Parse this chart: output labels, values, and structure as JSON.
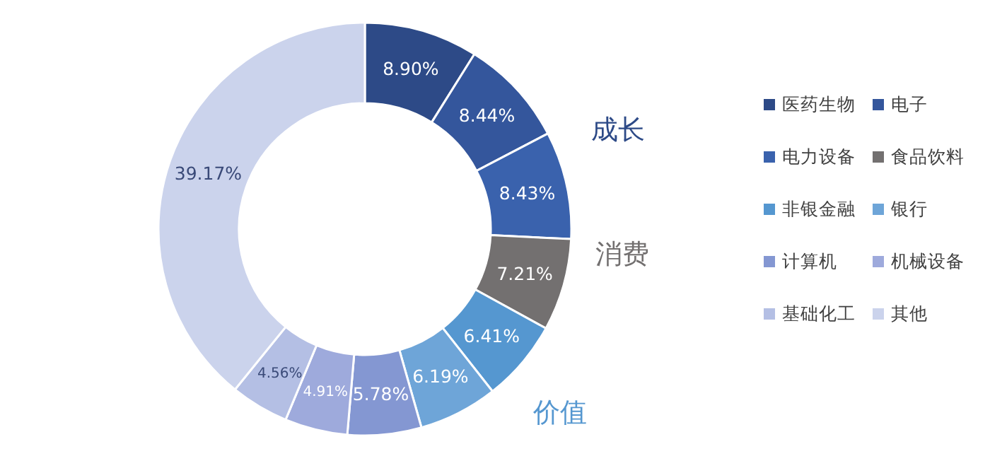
{
  "chart_data": {
    "type": "donut",
    "categories": [
      "医药生物",
      "电子",
      "电力设备",
      "食品饮料",
      "非银金融",
      "银行",
      "计算机",
      "机械设备",
      "基础化工",
      "其他"
    ],
    "values": [
      8.9,
      8.44,
      8.43,
      7.21,
      6.41,
      6.19,
      5.78,
      4.91,
      4.56,
      39.17
    ],
    "value_labels": [
      "8.90%",
      "8.44%",
      "8.43%",
      "7.21%",
      "6.41%",
      "6.19%",
      "5.78%",
      "4.91%",
      "4.56%",
      "39.17%"
    ],
    "colors": [
      "#2d4a87",
      "#34569c",
      "#3a62ad",
      "#737070",
      "#5597d0",
      "#6ea5d8",
      "#8497d2",
      "#9eaadc",
      "#b4bfe4",
      "#cbd3ec"
    ],
    "annotations": [
      "成长",
      "消费",
      "价值"
    ],
    "legend": "right"
  }
}
